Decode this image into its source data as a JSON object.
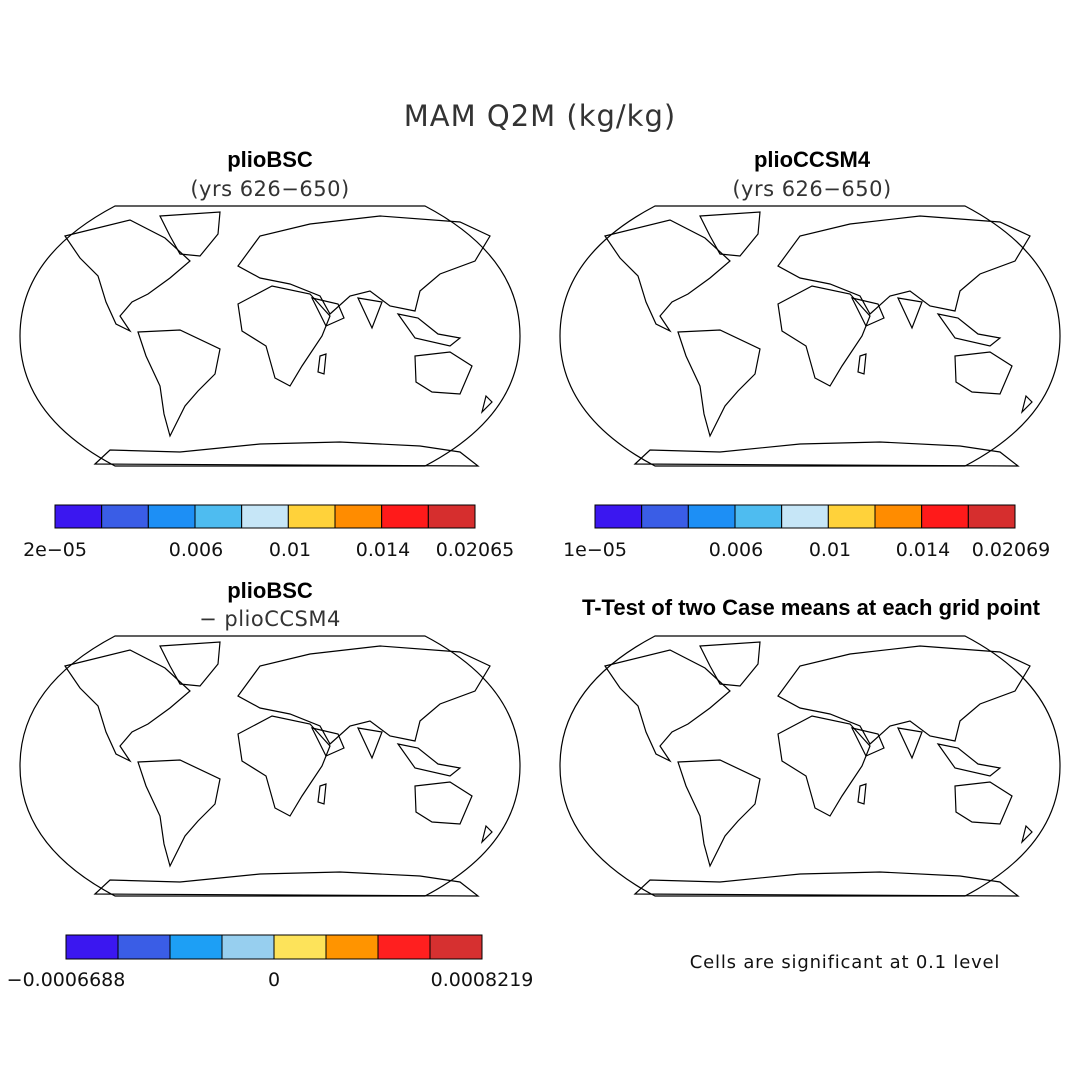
{
  "figure_title": "MAM Q2M (kg/kg)",
  "colors": {
    "ocean": "#ffffff",
    "coast": "#000000",
    "abs_levels": [
      "#3b17f0",
      "#3a5de6",
      "#1d8ff5",
      "#4ebcf0",
      "#c6e6f7",
      "#ffd23a",
      "#ff8c00",
      "#ff1a1a",
      "#d62e2e"
    ],
    "diff_levels": [
      "#3b17f0",
      "#3a5de6",
      "#1d9ff5",
      "#97cfef",
      "#fde35a",
      "#ff9400",
      "#ff1f1f",
      "#d63030"
    ],
    "significance": "#ff0000"
  },
  "panels": [
    {
      "id": "top-left",
      "title": "plioBSC",
      "subtitle": "(yrs 626−650)",
      "field": "abs",
      "colorbar": {
        "labels": [
          "2e−05",
          "0.006",
          "0.01",
          "0.014",
          "0.02065"
        ],
        "label_boundaries": [
          0,
          3,
          5,
          7,
          9
        ]
      }
    },
    {
      "id": "top-right",
      "title": "plioCCSM4",
      "subtitle": "(yrs 626−650)",
      "field": "abs",
      "colorbar": {
        "labels": [
          "1e−05",
          "0.006",
          "0.01",
          "0.014",
          "0.02069"
        ],
        "label_boundaries": [
          0,
          3,
          5,
          7,
          9
        ]
      }
    },
    {
      "id": "bottom-left",
      "title": "plioBSC",
      "subtitle": "− plioCCSM4",
      "field": "diff",
      "colorbar": {
        "labels": [
          "−0.0006688",
          "0",
          "0.0008219"
        ],
        "label_boundaries": [
          0,
          4,
          8
        ]
      }
    },
    {
      "id": "bottom-right",
      "title": "T-Test of two Case means at each grid point",
      "subtitle": "",
      "field": "sig",
      "note": "Cells are significant at 0.1 level"
    }
  ],
  "chart_data": {
    "type": "heatmap",
    "title": "MAM Q2M (kg/kg)",
    "variable": "Q2M",
    "season": "MAM",
    "units": "kg/kg",
    "projection": "Robinson (global)",
    "maps": [
      {
        "name": "plioBSC",
        "years": "626−650",
        "range": [
          2e-05,
          0.02065
        ],
        "contour_levels": [
          0.006,
          0.01,
          0.014
        ]
      },
      {
        "name": "plioCCSM4",
        "years": "626−650",
        "range": [
          1e-05,
          0.02069
        ],
        "contour_levels": [
          0.006,
          0.01,
          0.014
        ]
      },
      {
        "name": "plioBSC − plioCCSM4",
        "range": [
          -0.0006688,
          0.0008219
        ],
        "contour_levels": [
          0
        ]
      },
      {
        "name": "T-Test of two Case means at each grid point",
        "significance_level": 0.1
      }
    ]
  }
}
